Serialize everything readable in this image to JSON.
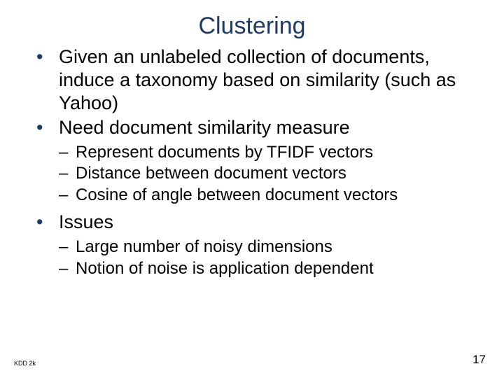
{
  "slide": {
    "title": "Clustering",
    "title_color": "#1f3864",
    "title_fontsize": 34,
    "body_fontsize_l1": 27,
    "body_fontsize_l2": 24,
    "bullet_color": "#1f3864",
    "dash_color": "#000000",
    "text_color": "#000000",
    "background_color": "#ffffff",
    "bullets": [
      {
        "text": "Given an unlabeled collection of documents, induce a taxonomy based on similarity (such as Yahoo)",
        "children": []
      },
      {
        "text": "Need document similarity measure",
        "children": [
          "Represent documents by TFIDF vectors",
          "Distance between document vectors",
          "Cosine of angle between document vectors"
        ]
      },
      {
        "text": "Issues",
        "children": [
          "Large number of noisy dimensions",
          "Notion of noise is application dependent"
        ]
      }
    ],
    "footer_left": "KDD 2k",
    "page_number": "17"
  }
}
